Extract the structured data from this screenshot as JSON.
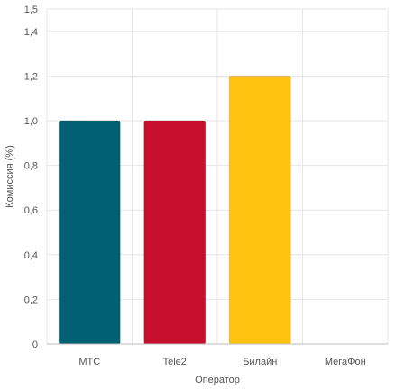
{
  "chart_data": {
    "type": "bar",
    "categories": [
      "МТС",
      "Tele2",
      "Билайн",
      "МегаФон"
    ],
    "values": [
      1.0,
      1.0,
      1.2,
      0
    ],
    "colors": [
      "#005f73",
      "#c8102e",
      "#ffc20e",
      "#bdbdbd"
    ],
    "xlabel": "Оператор",
    "ylabel": "Комиссия (%)",
    "ylim": [
      0,
      1.5
    ],
    "yticks": [
      {
        "value": 0,
        "label": "0"
      },
      {
        "value": 0.2,
        "label": "0,2"
      },
      {
        "value": 0.4,
        "label": "0,4"
      },
      {
        "value": 0.6,
        "label": "0,6"
      },
      {
        "value": 0.8,
        "label": "0,8"
      },
      {
        "value": 1.0,
        "label": "1,0"
      },
      {
        "value": 1.2,
        "label": "1,2"
      },
      {
        "value": 1.4,
        "label": "1,4"
      },
      {
        "value": 1.5,
        "label": "1,5"
      }
    ],
    "grid": true,
    "legend": "none"
  }
}
